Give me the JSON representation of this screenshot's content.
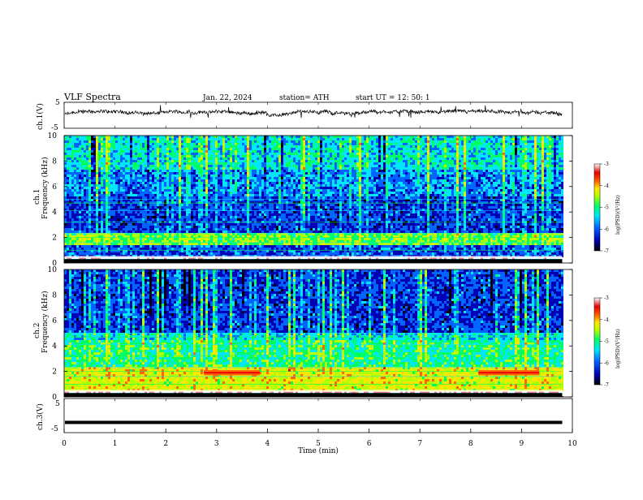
{
  "chart_data": {
    "type": "heatmap",
    "header": {
      "title": "VLF  Spectra",
      "date": "Jan. 22, 2024",
      "station": "station= ATH",
      "start": "start  UT  =    12: 50: 1"
    },
    "xlabel": "Time  (min)",
    "x_ticks": [
      "0",
      "1",
      "2",
      "3",
      "4",
      "5",
      "6",
      "7",
      "8",
      "9",
      "10"
    ],
    "xlim": [
      0,
      10
    ],
    "panels": [
      {
        "kind": "waveform",
        "ylabel": "ch.1(V)",
        "y_ticks": [
          "5",
          "-5"
        ],
        "ylim": [
          -5,
          5
        ],
        "trace_level": 0.4,
        "data_end_min": 9.8
      },
      {
        "kind": "spectrogram",
        "ylabel_top": "ch.1",
        "ylabel": "Frequency  (kHz)",
        "y_ticks": [
          "0",
          "2",
          "4",
          "6",
          "8",
          "10"
        ],
        "ylim": [
          0,
          10
        ],
        "colorbar": {
          "label": "log(PSD)(V²/Hz)",
          "ticks": [
            "-3",
            "-4",
            "-5",
            "-6",
            "-7"
          ],
          "range": [
            -7,
            -3
          ]
        },
        "data_end_min": 9.8
      },
      {
        "kind": "spectrogram",
        "ylabel_top": "ch.2",
        "ylabel": "Frequency  (kHz)",
        "y_ticks": [
          "0",
          "2",
          "4",
          "6",
          "8",
          "10"
        ],
        "ylim": [
          0,
          10
        ],
        "colorbar": {
          "label": "log(PSD)(V²/Hz)",
          "ticks": [
            "-3",
            "-4",
            "-5",
            "-6",
            "-7"
          ],
          "range": [
            -7,
            -3
          ]
        },
        "data_end_min": 9.8,
        "bursts": [
          {
            "t_start": 2.75,
            "t_end": 3.85,
            "f_low": 1.7,
            "f_high": 2.1
          },
          {
            "t_start": 8.15,
            "t_end": 9.35,
            "f_low": 1.7,
            "f_high": 2.1
          }
        ]
      },
      {
        "kind": "waveform",
        "ylabel": "ch.3(V)",
        "y_ticks": [
          "5",
          "-5"
        ],
        "ylim": [
          -5,
          5
        ],
        "trace_level": -2.0,
        "data_end_min": 9.8
      }
    ],
    "colormap": [
      "#000000",
      "#0000b4",
      "#0064ff",
      "#00e6ff",
      "#00ff64",
      "#b4ff00",
      "#ffe600",
      "#ff6400",
      "#e60000",
      "#ffffff"
    ]
  }
}
